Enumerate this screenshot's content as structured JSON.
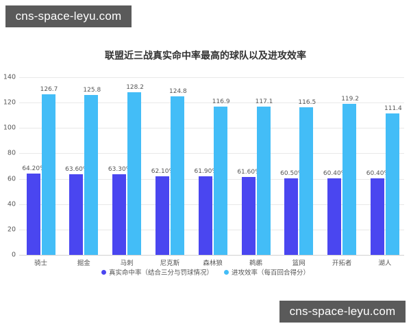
{
  "watermarks": {
    "top": "cns-space-leyu.com",
    "bottom": "cns-space-leyu.com"
  },
  "colors": {
    "series_a": "#4a46f0",
    "series_b": "#43bdf7",
    "watermark_bg": "#5a5a5a"
  },
  "chart_data": {
    "type": "bar",
    "title": "联盟近三战真实命中率最高的球队以及进攻效率",
    "xlabel": "",
    "ylabel": "",
    "ylim": [
      0,
      140
    ],
    "yticks": [
      0,
      20,
      40,
      60,
      80,
      100,
      120,
      140
    ],
    "grid": true,
    "legend_position": "bottom",
    "categories": [
      "骑士",
      "掘金",
      "马刺",
      "尼克斯",
      "森林狼",
      "鹈鹕",
      "篮网",
      "开拓者",
      "湖人"
    ],
    "series": [
      {
        "name": "真实命中率（结合三分与罚球情况）",
        "values": [
          64.2,
          63.6,
          63.3,
          62.1,
          61.9,
          61.6,
          60.5,
          60.4,
          60.4
        ],
        "labels": [
          "64.20%",
          "63.60%",
          "63.30%",
          "62.10%",
          "61.90%",
          "61.60%",
          "60.50%",
          "60.40%",
          "60.40%"
        ]
      },
      {
        "name": "进攻效率（每百回合得分）",
        "values": [
          126.7,
          125.8,
          128.2,
          124.8,
          116.9,
          117.1,
          116.5,
          119.2,
          111.4
        ],
        "labels": [
          "126.7",
          "125.8",
          "128.2",
          "124.8",
          "116.9",
          "117.1",
          "116.5",
          "119.2",
          "111.4"
        ]
      }
    ]
  }
}
